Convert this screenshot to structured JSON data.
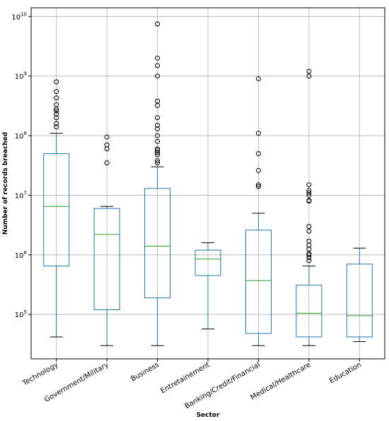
{
  "chart_data": {
    "type": "boxplot",
    "title": "",
    "xlabel": "Sector",
    "ylabel": "Number of records breached",
    "yscale": "log",
    "ylim": [
      18000,
      14000000000
    ],
    "grid": true,
    "legend": "none",
    "y_ticks": [
      {
        "value": 100000,
        "base": "10",
        "exp": "5"
      },
      {
        "value": 1000000,
        "base": "10",
        "exp": "6"
      },
      {
        "value": 10000000,
        "base": "10",
        "exp": "7"
      },
      {
        "value": 100000000,
        "base": "10",
        "exp": "8"
      },
      {
        "value": 1000000000,
        "base": "10",
        "exp": "9"
      },
      {
        "value": 10000000000,
        "base": "10",
        "exp": "10"
      }
    ],
    "colors": {
      "box": "#1f77b4",
      "median": "#2ca02c",
      "whisker": "#1f77b4",
      "cap": "#000000",
      "flier": "#000000",
      "grid": "#b0b0b0"
    },
    "categories": [
      "Technology",
      "Government/Military",
      "Business",
      "Entretainement",
      "Banking/Credit/Financial",
      "Medical/Healthcare",
      "Education"
    ],
    "boxes": [
      {
        "category": "Technology",
        "whislo": 42000,
        "q1": 650000,
        "med": 6500000,
        "q3": 50000000,
        "whishi": 110000000,
        "fliers": [
          140000000,
          160000000,
          200000000,
          230000000,
          260000000,
          280000000,
          330000000,
          430000000,
          550000000,
          800000000
        ]
      },
      {
        "category": "Government/Military",
        "whislo": 30000,
        "q1": 120000,
        "med": 2200000,
        "q3": 6000000,
        "whishi": 6500000,
        "fliers": [
          35000000,
          60000000,
          70000000,
          95000000
        ]
      },
      {
        "category": "Business",
        "whislo": 30000,
        "q1": 190000,
        "med": 1400000,
        "q3": 13000000,
        "whishi": 30000000,
        "fliers": [
          35000000,
          38000000,
          48000000,
          52000000,
          57000000,
          60000000,
          80000000,
          100000000,
          130000000,
          150000000,
          200000000,
          320000000,
          380000000,
          1000000000,
          1500000000,
          2000000000,
          7500000000
        ]
      },
      {
        "category": "Entretainement",
        "whislo": 57000,
        "q1": 450000,
        "med": 850000,
        "q3": 1200000,
        "whishi": 1600000,
        "fliers": []
      },
      {
        "category": "Banking/Credit/Financial",
        "whislo": 30000,
        "q1": 48000,
        "med": 370000,
        "q3": 2600000,
        "whishi": 5000000,
        "fliers": [
          14000000,
          15000000,
          26000000,
          50000000,
          110000000,
          900000000
        ]
      },
      {
        "category": "Medical/Healthcare",
        "whislo": 30000,
        "q1": 42000,
        "med": 105000,
        "q3": 310000,
        "whishi": 650000,
        "fliers": [
          800000,
          900000,
          1000000,
          1050000,
          1250000,
          1450000,
          1700000,
          2500000,
          3000000,
          8000000,
          8200000,
          10000000,
          11000000,
          12000000,
          15000000,
          1000000000,
          1200000000
        ]
      },
      {
        "category": "Education",
        "whislo": 35000,
        "q1": 42000,
        "med": 95000,
        "q3": 700000,
        "whishi": 1300000,
        "fliers": []
      }
    ]
  }
}
